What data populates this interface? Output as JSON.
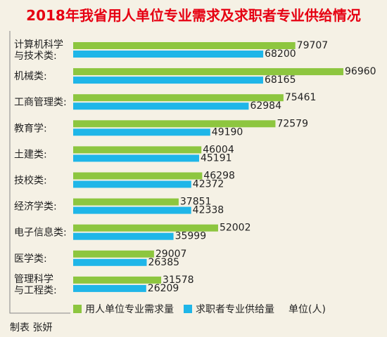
{
  "chart_data": {
    "type": "bar",
    "orientation": "horizontal",
    "title": "2018年我省用人单位专业需求及求职者专业供给情况",
    "categories": [
      [
        "计算机科学",
        "与技术类:"
      ],
      [
        "机械类:"
      ],
      [
        "工商管理类:"
      ],
      [
        "教育学:"
      ],
      [
        "土建类:"
      ],
      [
        "技校类:"
      ],
      [
        "经济学类:"
      ],
      [
        "电子信息类:"
      ],
      [
        "医学类:"
      ],
      [
        "管理科学",
        "与工程类:"
      ]
    ],
    "series": [
      {
        "name": "用人单位专业需求量",
        "color": "#8dc63f",
        "values": [
          79707,
          96960,
          75461,
          72579,
          46004,
          46298,
          37851,
          52002,
          29007,
          31578
        ]
      },
      {
        "name": "求职者专业供给量",
        "color": "#1fb6e8",
        "values": [
          68200,
          68165,
          62984,
          49190,
          45191,
          42372,
          42338,
          35999,
          26385,
          26209
        ]
      }
    ],
    "xlim": [
      0,
      100000
    ],
    "grid": false,
    "legend_position": "bottom",
    "unit": "单位(人)"
  },
  "credit": "制表 张妍"
}
